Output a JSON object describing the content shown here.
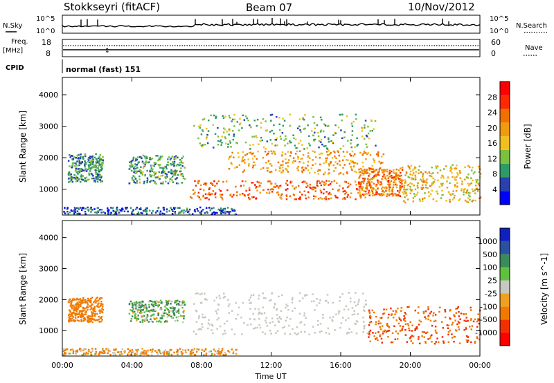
{
  "header": {
    "station": "Stokkseyri (fitACF)",
    "beam": "Beam 07",
    "date": "10/Nov/2012"
  },
  "top_panels": {
    "nsky_label": "N.Sky",
    "nsky_ticks": [
      "10^5",
      "10^0"
    ],
    "nsearch_label": "N.Search",
    "nsearch_ticks": [
      "10^5",
      "10^0"
    ],
    "freq_label": "Freq.",
    "freq_unit": "[MHz]",
    "freq_ticks": [
      "18",
      "8"
    ],
    "nave_label": "Nave",
    "nave_ticks": [
      "60",
      "0"
    ],
    "cpid_label": "CPID",
    "cpid_text": "normal (fast) 151"
  },
  "colors": {
    "scale": [
      "#0000ff",
      "#2840b0",
      "#2e9a68",
      "#7cc040",
      "#f0c020",
      "#f09a10",
      "#f07000",
      "#ff2800",
      "#ff0000"
    ],
    "gs_grey": "#c8c8c0",
    "vel_scale": [
      "#ff0000",
      "#f03000",
      "#f07a00",
      "#f0a020",
      "#c8c8c0",
      "#60c040",
      "#3a8a5a",
      "#2a50a0",
      "#1020c0"
    ]
  },
  "chart_data": [
    {
      "type": "heatmap",
      "name": "power",
      "ylabel": "Slant Range [km]",
      "yticks": [
        "4000",
        "3000",
        "2000",
        "1000"
      ],
      "ylim": [
        180,
        4550
      ],
      "xlim": [
        0,
        24
      ],
      "colorbar_label": "Power [dB]",
      "colorbar_ticks": [
        "28",
        "24",
        "20",
        "16",
        "12",
        "8",
        "4"
      ],
      "colorbar_range": [
        0,
        32
      ],
      "echo_regions": [
        {
          "t": [
            0.3,
            2.3
          ],
          "r": [
            1250,
            2150
          ],
          "level": 9
        },
        {
          "t": [
            3.8,
            7.0
          ],
          "r": [
            1200,
            2100
          ],
          "level": 10
        },
        {
          "t": [
            7.3,
            17.5
          ],
          "r": [
            700,
            1300
          ],
          "level": 24
        },
        {
          "t": [
            9.5,
            18.5
          ],
          "r": [
            1500,
            2250
          ],
          "level": 20
        },
        {
          "t": [
            7.5,
            18.0
          ],
          "r": [
            2300,
            3400
          ],
          "level": 11
        },
        {
          "t": [
            17.0,
            19.5
          ],
          "r": [
            800,
            1700
          ],
          "level": 22
        },
        {
          "t": [
            19.5,
            24.0
          ],
          "r": [
            600,
            1800
          ],
          "level": 17
        },
        {
          "t": [
            0.0,
            10.0
          ],
          "r": [
            200,
            450
          ],
          "level": 6
        }
      ]
    },
    {
      "type": "heatmap",
      "name": "velocity",
      "ylabel": "Slant Range [km]",
      "yticks": [
        "4000",
        "3000",
        "2000",
        "1000"
      ],
      "ylim": [
        180,
        4550
      ],
      "xlim": [
        0,
        24
      ],
      "xticks": [
        "00:00",
        "04:00",
        "08:00",
        "12:00",
        "16:00",
        "20:00",
        "00:00"
      ],
      "xlabel": "Time UT",
      "colorbar_label": "Velocity [m s^-1]",
      "colorbar_ticks": [
        "1000",
        "500",
        "100",
        "25",
        "-25",
        "-100",
        "-500",
        "-1000"
      ],
      "echo_regions": [
        {
          "t": [
            0.3,
            2.3
          ],
          "r": [
            1300,
            2100
          ],
          "velocity": -300
        },
        {
          "t": [
            3.8,
            7.0
          ],
          "r": [
            1300,
            2000
          ],
          "velocity": 80
        },
        {
          "t": [
            7.5,
            17.5
          ],
          "r": [
            900,
            2250
          ],
          "velocity": 0
        },
        {
          "t": [
            17.5,
            24.0
          ],
          "r": [
            600,
            1800
          ],
          "velocity": -500
        },
        {
          "t": [
            0.0,
            10.0
          ],
          "r": [
            200,
            450
          ],
          "velocity": -100
        }
      ]
    }
  ]
}
